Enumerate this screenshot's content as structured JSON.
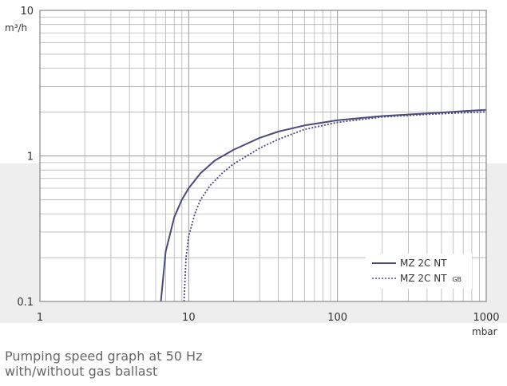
{
  "chart_data": {
    "type": "line",
    "x_scale": "log",
    "y_scale": "log",
    "xlim": [
      1,
      1000
    ],
    "ylim": [
      0.1,
      10
    ],
    "x_ticks": [
      "1",
      "10",
      "100",
      "1000"
    ],
    "y_ticks": [
      "0.1",
      "1",
      "10"
    ],
    "x_ticks_values": [
      1,
      10,
      100,
      1000
    ],
    "y_ticks_values": [
      0.1,
      1,
      10
    ],
    "xunit": "mbar",
    "yunit": "m³/h",
    "grid": true,
    "legend_placement": "bottom-right",
    "series": [
      {
        "name": "MZ 2C NT",
        "style": "solid",
        "color": "#4a4a7e",
        "x": [
          6.5,
          7,
          8,
          9,
          10,
          12,
          15,
          20,
          30,
          40,
          60,
          100,
          200,
          400,
          700,
          1000
        ],
        "y": [
          0.1,
          0.22,
          0.38,
          0.5,
          0.6,
          0.76,
          0.93,
          1.1,
          1.33,
          1.47,
          1.62,
          1.76,
          1.88,
          1.96,
          2.03,
          2.07
        ]
      },
      {
        "name": "MZ 2C NT",
        "name_subscript": "GB",
        "style": "dotted",
        "color": "#4a4a7e",
        "x": [
          9.3,
          9.6,
          10,
          11,
          12,
          14,
          17,
          20,
          30,
          40,
          60,
          100,
          200,
          400,
          700,
          1000
        ],
        "y": [
          0.1,
          0.2,
          0.28,
          0.4,
          0.5,
          0.63,
          0.77,
          0.88,
          1.13,
          1.3,
          1.52,
          1.7,
          1.85,
          1.93,
          1.98,
          2.01
        ]
      }
    ]
  },
  "caption": {
    "line1": "Pumping speed graph at 50 Hz",
    "line2": "with/without gas ballast"
  }
}
